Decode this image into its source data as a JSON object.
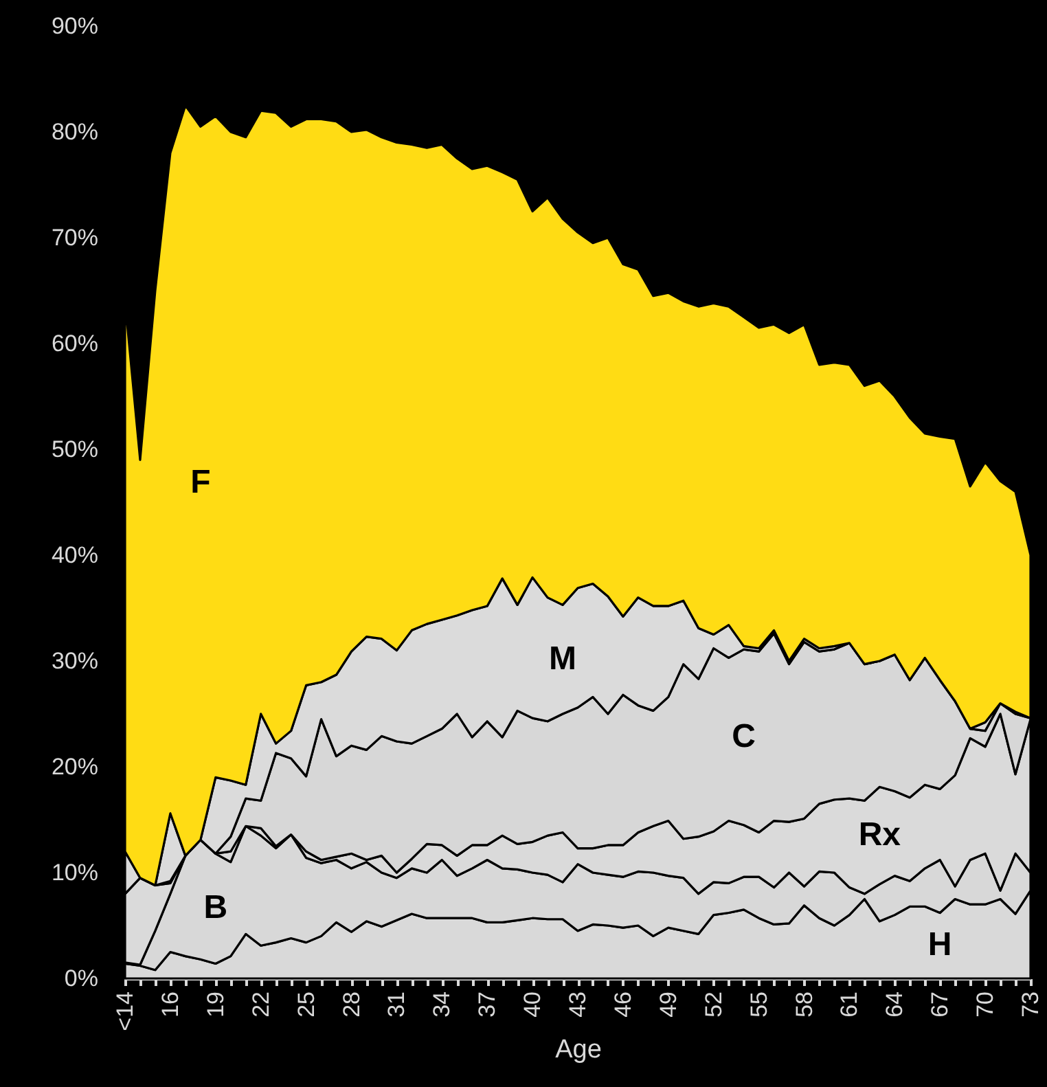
{
  "chart_data": {
    "type": "area",
    "stacked": true,
    "xlabel": "Age",
    "categories": [
      "<14",
      null,
      null,
      "16",
      null,
      null,
      "19",
      null,
      null,
      "22",
      null,
      null,
      "25",
      null,
      null,
      "28",
      null,
      null,
      "31",
      null,
      null,
      "34",
      null,
      null,
      "37",
      null,
      null,
      "40",
      null,
      null,
      "43",
      null,
      null,
      "46",
      null,
      null,
      "49",
      null,
      null,
      "52",
      null,
      null,
      "55",
      null,
      null,
      "58",
      null,
      null,
      "61",
      null,
      null,
      "64",
      null,
      null,
      "67",
      null,
      null,
      "70",
      null,
      null,
      "73"
    ],
    "ylim": [
      0,
      90
    ],
    "yticks": [
      {
        "value": 0,
        "label": "0%"
      },
      {
        "value": 10,
        "label": "10%"
      },
      {
        "value": 20,
        "label": "20%"
      },
      {
        "value": 30,
        "label": "30%"
      },
      {
        "value": 40,
        "label": "40%"
      },
      {
        "value": 50,
        "label": "50%"
      },
      {
        "value": 60,
        "label": "60%"
      },
      {
        "value": 70,
        "label": "70%"
      },
      {
        "value": 80,
        "label": "80%"
      },
      {
        "value": 90,
        "label": "90%"
      }
    ],
    "series": [
      {
        "name": "H",
        "color": "#d9d9d9",
        "values": [
          1.4,
          1.2,
          0.8,
          2.5,
          2.1,
          1.8,
          1.4,
          2.1,
          4.2,
          3.1,
          3.4,
          3.8,
          3.4,
          4,
          5.3,
          4.4,
          5.4,
          4.9,
          5.5,
          6.1,
          5.7,
          5.7,
          5.7,
          5.7,
          5.3,
          5.3,
          5.5,
          5.7,
          5.6,
          5.6,
          4.5,
          5.1,
          5,
          4.8,
          5,
          4,
          4.8,
          4.5,
          4.2,
          6,
          6.2,
          6.5,
          5.7,
          5.1,
          5.2,
          6.9,
          5.7,
          5,
          6,
          7.5,
          5.4,
          6,
          6.8,
          6.8,
          6.2,
          7.5,
          7,
          7,
          7.5,
          6.1,
          8.3
        ]
      },
      {
        "name": "B",
        "color": "#d8d8d8",
        "values": [
          0.1,
          0.1,
          3.7,
          5.5,
          9.5,
          11.3,
          10.4,
          8.9,
          10.2,
          10.4,
          8.9,
          9.8,
          8,
          6.9,
          5.9,
          6,
          5.6,
          5.1,
          4,
          4.3,
          4.3,
          5.5,
          4,
          4.7,
          5.9,
          5.1,
          4.8,
          4.3,
          4.2,
          3.5,
          6.3,
          4.9,
          4.8,
          4.8,
          5.1,
          6,
          4.9,
          5,
          3.8,
          3.1,
          2.8,
          3.1,
          3.9,
          3.5,
          4.8,
          1.8,
          4.4,
          5,
          2.6,
          0.5,
          3.5,
          3.7,
          2.4,
          3.6,
          5,
          1.2,
          4.2,
          4.8,
          0.8,
          5.7,
          1.7
        ]
      },
      {
        "name": "Rx",
        "color": "#dadada",
        "values": [
          6.5,
          8.2,
          4.3,
          1,
          0,
          0,
          0,
          1,
          0,
          0.7,
          0.2,
          0,
          0.6,
          0.3,
          0.3,
          1.4,
          0.2,
          1.6,
          0.5,
          0.9,
          2.7,
          1.4,
          1.9,
          2.2,
          1.4,
          3.1,
          2.4,
          2.9,
          3.7,
          4.7,
          1.5,
          2.3,
          2.8,
          3,
          3.7,
          4.4,
          5.2,
          3.7,
          5.4,
          4.8,
          5.9,
          4.9,
          4.2,
          6.3,
          4.8,
          6.4,
          6.4,
          6.9,
          8.4,
          8.8,
          9.2,
          8,
          7.9,
          7.9,
          6.7,
          10.5,
          11.5,
          10.1,
          16.7,
          7.5,
          14.5
        ]
      },
      {
        "name": "C",
        "color": "#d7d7d7",
        "values": [
          0,
          0,
          0,
          0.2,
          0,
          0,
          0,
          1.4,
          2.6,
          2.6,
          8.8,
          7.2,
          7.1,
          13.3,
          9.5,
          10.2,
          10.4,
          11.3,
          12.4,
          10.9,
          10.2,
          11,
          13.4,
          10.2,
          11.7,
          9.3,
          12.6,
          11.7,
          10.8,
          11.2,
          13.3,
          14.3,
          12.4,
          14.2,
          12,
          10.9,
          11.7,
          16.5,
          14.9,
          17.3,
          15.4,
          16.6,
          17.1,
          17.7,
          14.9,
          16.7,
          14.4,
          14.2,
          14.7,
          12.9,
          11.9,
          12.9,
          11.1,
          12,
          10.3,
          7,
          0.9,
          1.5,
          1,
          5.7,
          0.1
        ]
      },
      {
        "name": "M",
        "color": "#dbdbdb",
        "values": [
          4,
          0,
          0,
          6.4,
          0,
          0,
          7.2,
          5.3,
          1.3,
          8.2,
          0.9,
          2.6,
          8.6,
          3.5,
          7.7,
          8.9,
          10.7,
          9.2,
          8.6,
          10.7,
          10.6,
          10.3,
          9.3,
          12,
          10.9,
          15,
          10,
          13.3,
          11.7,
          10.3,
          11.3,
          10.7,
          11.1,
          7.4,
          10.2,
          9.9,
          8.6,
          6,
          4.8,
          1.3,
          3.1,
          0.3,
          0.3,
          0.3,
          0.3,
          0.3,
          0.3,
          0.3,
          0,
          0,
          0,
          0,
          0,
          0,
          0,
          0,
          0,
          0.8,
          0,
          0.2,
          0
        ]
      },
      {
        "name": "F",
        "color": "#ffdc14",
        "values": [
          52,
          39.5,
          56.2,
          62.4,
          70.9,
          67.4,
          62.5,
          61.3,
          61.2,
          57,
          59.6,
          57.1,
          53.5,
          53.2,
          52.3,
          49.1,
          47.9,
          47.4,
          48,
          45.9,
          45,
          44.9,
          43.2,
          41.7,
          41.6,
          38.4,
          40.2,
          34.6,
          37.8,
          36.5,
          33.6,
          32.2,
          33.9,
          33.3,
          31,
          29.3,
          29.6,
          28.3,
          30.4,
          31.3,
          30.1,
          31.1,
          30.3,
          28.9,
          31,
          29.7,
          26.8,
          26.8,
          26.3,
          26.3,
          26.5,
          24.4,
          24.8,
          21.2,
          23,
          24.8,
          22.9,
          24.6,
          21,
          20.8,
          15.4
        ]
      }
    ]
  }
}
